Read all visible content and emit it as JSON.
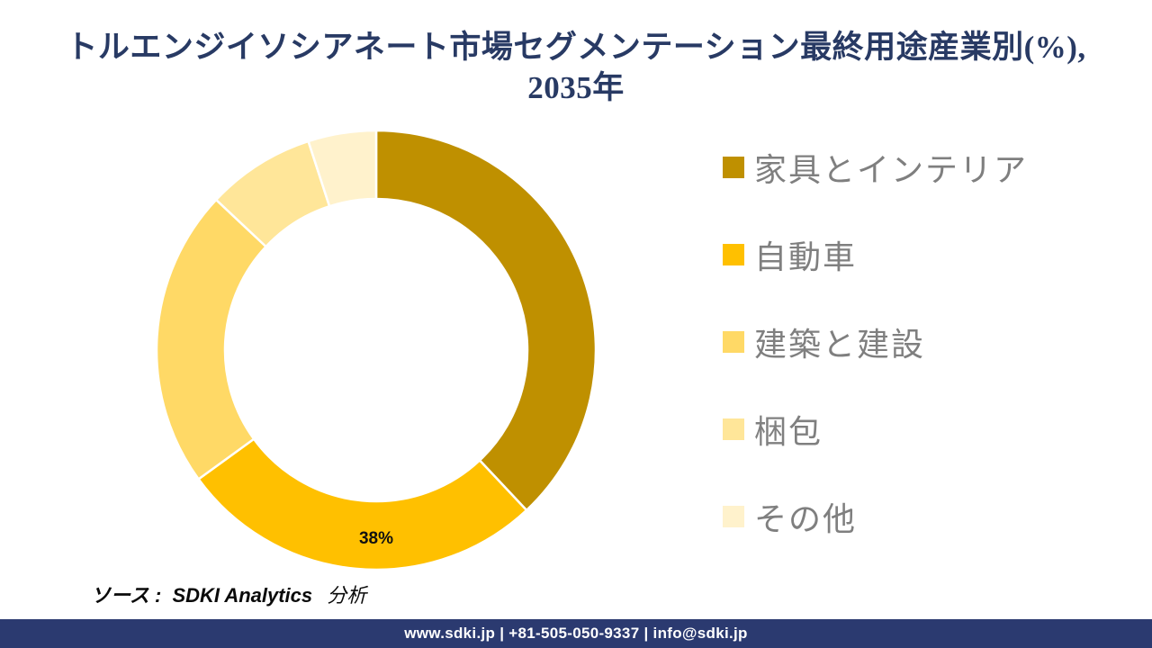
{
  "title": {
    "line1": "トルエンジイソシアネート市場セグメンテーション最終用途産業別(%),",
    "line2": "2035年",
    "color": "#283A64"
  },
  "chart_data": {
    "type": "pie",
    "subtype": "donut",
    "title": "トルエンジイソシアネート市場セグメンテーション最終用途産業別(%), 2035年",
    "categories": [
      "家具とインテリア",
      "自動車",
      "建築と建設",
      "梱包",
      "その他"
    ],
    "values": [
      38,
      27,
      22,
      8,
      5
    ],
    "unit": "%",
    "colors": [
      "#BF9000",
      "#FFC000",
      "#FFD966",
      "#FFE699",
      "#FFF2CC"
    ],
    "start_angle_deg": 0,
    "clockwise": true,
    "inner_radius_ratio": 0.69,
    "separator_color": "#FFFFFF",
    "legend_position": "right",
    "visible_data_label": {
      "text": "38%",
      "value": 38,
      "category": "家具とインテリア",
      "position": "bottom-center"
    }
  },
  "legend": {
    "text_color": "#7F7F7F",
    "items": [
      {
        "label": "家具とインテリア",
        "color": "#BF9000"
      },
      {
        "label": "自動車",
        "color": "#FFC000"
      },
      {
        "label": "建築と建設",
        "color": "#FFD966"
      },
      {
        "label": "梱包",
        "color": "#FFE699"
      },
      {
        "label": "その他",
        "color": "#FFF2CC"
      }
    ]
  },
  "source_note": {
    "prefix": "ソース :",
    "name": "SDKI Analytics",
    "suffix": "分析"
  },
  "footer": {
    "text": "www.sdki.jp | +81-505-050-9337 | info@sdki.jp",
    "background": "#2B3A70",
    "text_color": "#FFFFFF"
  }
}
